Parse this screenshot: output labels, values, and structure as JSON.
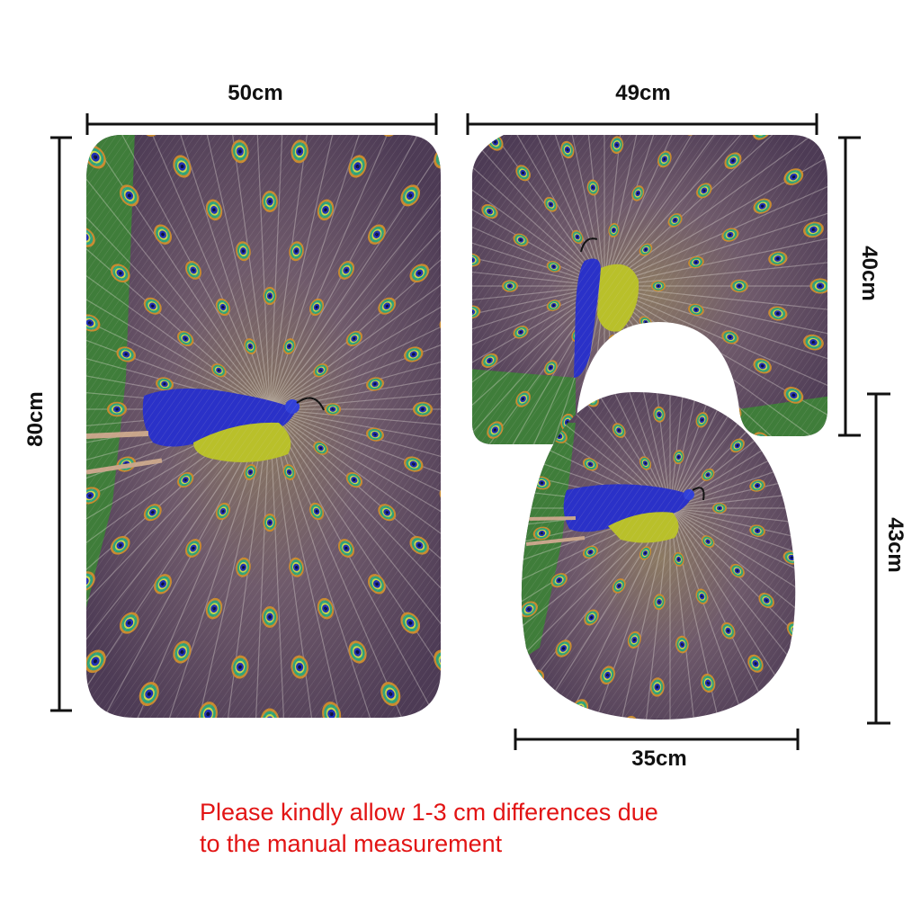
{
  "dimensions": {
    "bath_mat_width": "50cm",
    "bath_mat_height": "80cm",
    "contour_mat_width": "49cm",
    "contour_mat_height": "40cm",
    "lid_cover_height": "43cm",
    "lid_cover_width": "35cm"
  },
  "note": {
    "line1": "Please kindly allow 1-3 cm differences due",
    "line2": "to the manual measurement"
  },
  "colors": {
    "note_text": "#e21414",
    "dimension_lines": "#111111",
    "peacock_body": "#2a31c8",
    "grass": "#3f7d3a",
    "feather_base": "#6e5566"
  }
}
